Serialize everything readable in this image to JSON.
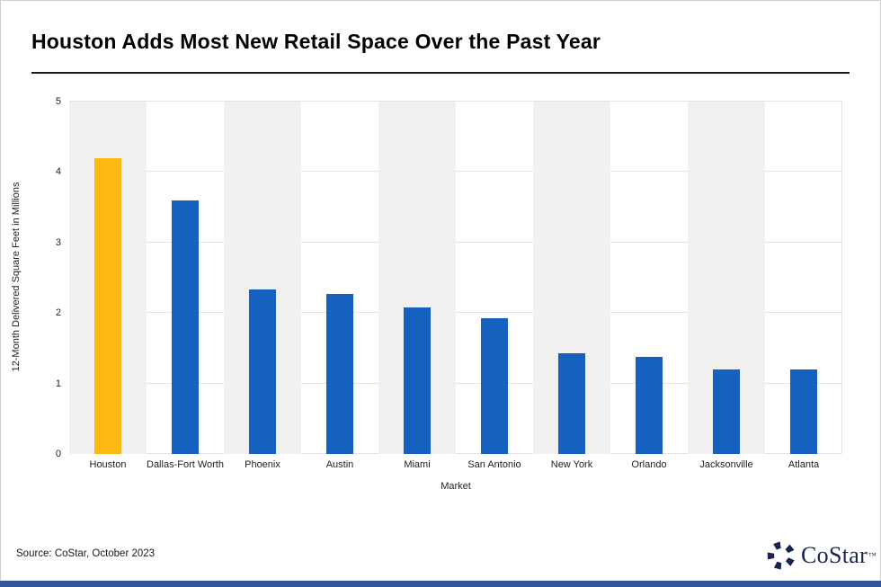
{
  "page": {
    "title": "Houston Adds Most New Retail Space Over the Past Year",
    "source_note": "Source: CoStar, October 2023",
    "footer_bar_color": "#33539e"
  },
  "logo": {
    "icon": "costar-pinwheel-icon",
    "text": "CoStar",
    "trademark": "™",
    "color": "#16244e"
  },
  "chart_data": {
    "type": "bar",
    "title": "Houston Adds Most New Retail Space Over the Past Year",
    "categories": [
      "Houston",
      "Dallas-Fort Worth",
      "Phoenix",
      "Austin",
      "Miami",
      "San Antonio",
      "New York",
      "Orlando",
      "Jacksonville",
      "Atlanta"
    ],
    "values": [
      4.2,
      3.6,
      2.33,
      2.27,
      2.08,
      1.93,
      1.43,
      1.38,
      1.2,
      1.2
    ],
    "highlight_category": "Houston",
    "colors": {
      "bar_default": "#1561bd",
      "bar_highlight": "#fdb813",
      "band_stripe": "#f0f0f0",
      "gridline": "#e2e2e2"
    },
    "xlabel": "Market",
    "ylabel": "12-Month Delivered Square Feet in Millions",
    "ylim": [
      0,
      5
    ],
    "yticks": [
      0,
      1,
      2,
      3,
      4,
      5
    ],
    "grid": "horizontal",
    "legend": "none"
  }
}
